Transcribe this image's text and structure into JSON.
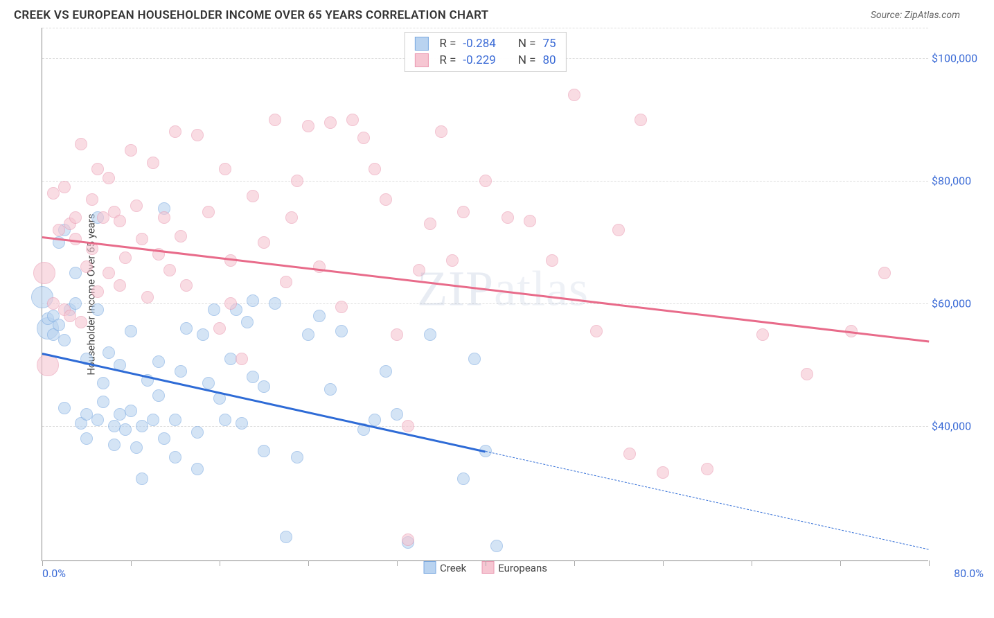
{
  "header": {
    "title": "CREEK VS EUROPEAN HOUSEHOLDER INCOME OVER 65 YEARS CORRELATION CHART",
    "source": "Source: ZipAtlas.com"
  },
  "watermark": {
    "part1": "ZIP",
    "part2": "atlas"
  },
  "chart": {
    "type": "scatter",
    "y_axis_title": "Householder Income Over 65 years",
    "background_color": "#ffffff",
    "grid_color": "#dddddd",
    "axis_color": "#888888",
    "tick_label_color": "#3b6bd6",
    "xlim": [
      0,
      80
    ],
    "ylim": [
      18000,
      105000
    ],
    "x_tick_positions": [
      0,
      8,
      16,
      24,
      32,
      40,
      48,
      56,
      64,
      72,
      80
    ],
    "x_labels": {
      "start": "0.0%",
      "end": "80.0%"
    },
    "y_ticks": [
      {
        "v": 40000,
        "label": "$40,000"
      },
      {
        "v": 60000,
        "label": "$60,000"
      },
      {
        "v": 80000,
        "label": "$80,000"
      },
      {
        "v": 100000,
        "label": "$100,000"
      }
    ],
    "point_radius": 9,
    "point_radius_large": 16,
    "point_border_width": 1.5,
    "series": [
      {
        "key": "creek",
        "label": "Creek",
        "fill": "#b9d3f0",
        "fill_opacity": 0.6,
        "stroke": "#7aa9e0",
        "line_color": "#2e6bd6",
        "line_width": 3,
        "R": "-0.284",
        "N": "75",
        "trend": {
          "x0": 0,
          "y0": 52000,
          "x1": 80,
          "y1": 20000,
          "solid_until_x": 40
        },
        "points": [
          [
            0,
            61000
          ],
          [
            0.5,
            56000
          ],
          [
            0.5,
            57500
          ],
          [
            1,
            55000
          ],
          [
            1,
            58000
          ],
          [
            1.5,
            56500
          ],
          [
            1.5,
            70000
          ],
          [
            2,
            54000
          ],
          [
            2,
            43000
          ],
          [
            2,
            72000
          ],
          [
            2.5,
            59000
          ],
          [
            3,
            60000
          ],
          [
            3,
            65000
          ],
          [
            3.5,
            40500
          ],
          [
            4,
            42000
          ],
          [
            4,
            38000
          ],
          [
            4,
            51000
          ],
          [
            5,
            41000
          ],
          [
            5,
            59000
          ],
          [
            5,
            74000
          ],
          [
            5.5,
            44000
          ],
          [
            5.5,
            47000
          ],
          [
            6,
            52000
          ],
          [
            6.5,
            37000
          ],
          [
            6.5,
            40000
          ],
          [
            7,
            42000
          ],
          [
            7,
            50000
          ],
          [
            7.5,
            39500
          ],
          [
            8,
            55500
          ],
          [
            8,
            42500
          ],
          [
            8.5,
            36500
          ],
          [
            9,
            40000
          ],
          [
            9,
            31500
          ],
          [
            9.5,
            47500
          ],
          [
            10,
            41000
          ],
          [
            10.5,
            45000
          ],
          [
            10.5,
            50500
          ],
          [
            11,
            38000
          ],
          [
            11,
            75500
          ],
          [
            12,
            35000
          ],
          [
            12,
            41000
          ],
          [
            12.5,
            49000
          ],
          [
            13,
            56000
          ],
          [
            14,
            39000
          ],
          [
            14,
            33000
          ],
          [
            14.5,
            55000
          ],
          [
            15,
            47000
          ],
          [
            15.5,
            59000
          ],
          [
            16,
            44500
          ],
          [
            16.5,
            41000
          ],
          [
            17,
            51000
          ],
          [
            17.5,
            59000
          ],
          [
            18,
            40500
          ],
          [
            18.5,
            57000
          ],
          [
            19,
            48000
          ],
          [
            19,
            60500
          ],
          [
            20,
            46500
          ],
          [
            20,
            36000
          ],
          [
            21,
            60000
          ],
          [
            22,
            22000
          ],
          [
            23,
            35000
          ],
          [
            24,
            55000
          ],
          [
            25,
            58000
          ],
          [
            26,
            46000
          ],
          [
            27,
            55500
          ],
          [
            29,
            39500
          ],
          [
            30,
            41000
          ],
          [
            31,
            49000
          ],
          [
            32,
            42000
          ],
          [
            33,
            21000
          ],
          [
            35,
            55000
          ],
          [
            38,
            31500
          ],
          [
            39,
            51000
          ],
          [
            40,
            36000
          ],
          [
            41,
            20500
          ]
        ]
      },
      {
        "key": "europeans",
        "label": "Europeans",
        "fill": "#f6c6d2",
        "fill_opacity": 0.6,
        "stroke": "#ea9ab2",
        "line_color": "#e86b8a",
        "line_width": 3,
        "R": "-0.229",
        "N": "80",
        "trend": {
          "x0": 0,
          "y0": 71000,
          "x1": 80,
          "y1": 54000,
          "solid_until_x": 80
        },
        "points": [
          [
            0.2,
            65000
          ],
          [
            0.5,
            50000
          ],
          [
            1,
            60000
          ],
          [
            1,
            78000
          ],
          [
            1.5,
            72000
          ],
          [
            2,
            79000
          ],
          [
            2,
            59000
          ],
          [
            2.5,
            73000
          ],
          [
            2.5,
            58000
          ],
          [
            3,
            70500
          ],
          [
            3,
            74000
          ],
          [
            3.5,
            57000
          ],
          [
            3.5,
            86000
          ],
          [
            4,
            66000
          ],
          [
            4.5,
            77000
          ],
          [
            4.5,
            69000
          ],
          [
            5,
            62000
          ],
          [
            5,
            82000
          ],
          [
            5.5,
            74000
          ],
          [
            6,
            80500
          ],
          [
            6,
            65000
          ],
          [
            6.5,
            75000
          ],
          [
            7,
            63000
          ],
          [
            7,
            73500
          ],
          [
            7.5,
            67500
          ],
          [
            8,
            85000
          ],
          [
            8.5,
            76000
          ],
          [
            9,
            70500
          ],
          [
            9.5,
            61000
          ],
          [
            10,
            83000
          ],
          [
            10.5,
            68000
          ],
          [
            11,
            74000
          ],
          [
            11.5,
            65500
          ],
          [
            12,
            88000
          ],
          [
            12.5,
            71000
          ],
          [
            13,
            63000
          ],
          [
            14,
            87500
          ],
          [
            15,
            75000
          ],
          [
            16,
            56000
          ],
          [
            16.5,
            82000
          ],
          [
            17,
            67000
          ],
          [
            17,
            60000
          ],
          [
            18,
            51000
          ],
          [
            19,
            77500
          ],
          [
            20,
            70000
          ],
          [
            21,
            90000
          ],
          [
            22,
            63500
          ],
          [
            22.5,
            74000
          ],
          [
            23,
            80000
          ],
          [
            24,
            89000
          ],
          [
            25,
            66000
          ],
          [
            26,
            89500
          ],
          [
            27,
            59500
          ],
          [
            28,
            90000
          ],
          [
            29,
            87000
          ],
          [
            30,
            82000
          ],
          [
            31,
            77000
          ],
          [
            32,
            55000
          ],
          [
            33,
            21500
          ],
          [
            33,
            40000
          ],
          [
            34,
            65500
          ],
          [
            35,
            73000
          ],
          [
            36,
            88000
          ],
          [
            37,
            67000
          ],
          [
            38,
            75000
          ],
          [
            40,
            80000
          ],
          [
            42,
            74000
          ],
          [
            44,
            73500
          ],
          [
            46,
            67000
          ],
          [
            48,
            94000
          ],
          [
            50,
            55500
          ],
          [
            52,
            72000
          ],
          [
            53,
            35500
          ],
          [
            54,
            90000
          ],
          [
            56,
            32500
          ],
          [
            60,
            33000
          ],
          [
            65,
            55000
          ],
          [
            69,
            48500
          ],
          [
            73,
            55500
          ],
          [
            76,
            65000
          ]
        ]
      }
    ],
    "legend": {
      "bottom": [
        {
          "label": "Creek",
          "fill": "#b9d3f0",
          "stroke": "#7aa9e0"
        },
        {
          "label": "Europeans",
          "fill": "#f6c6d2",
          "stroke": "#ea9ab2"
        }
      ]
    }
  }
}
